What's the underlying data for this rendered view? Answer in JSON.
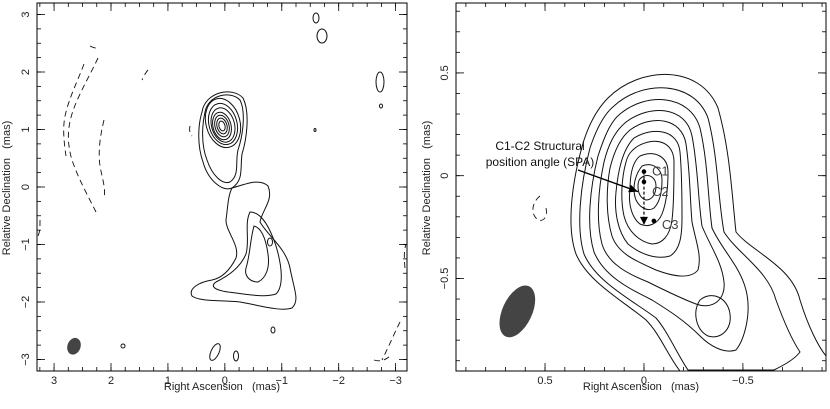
{
  "chart_data": [
    {
      "type": "contour",
      "title": "",
      "xlabel": "Right Ascension   (mas)",
      "ylabel": "Relative Declination   (mas)",
      "xlim": [
        3.3,
        -3.2
      ],
      "ylim": [
        -3.2,
        3.2
      ],
      "x_reversed": true,
      "xticks": [
        3,
        2,
        1,
        0,
        -1,
        -2,
        -3
      ],
      "xtick_labels": [
        "3",
        "2",
        "1",
        "0",
        "−1",
        "−2",
        "−3"
      ],
      "yticks": [
        3,
        2,
        1,
        0,
        -1,
        -2,
        -3
      ],
      "ytick_labels": [
        "3",
        "2",
        "1",
        "0",
        "−1",
        "−2",
        "−3"
      ],
      "core": {
        "x": -0.03,
        "y": 0.98
      },
      "beam": {
        "x": 2.65,
        "y": -2.77,
        "major_mas": 0.3,
        "minor_mas": 0.23,
        "pa_deg": 20
      }
    },
    {
      "type": "contour",
      "title": "",
      "xlabel": "Right Ascension   (mas)",
      "ylabel": "Relative Declination   (mas)",
      "xlim": [
        0.95,
        -0.92
      ],
      "ylim": [
        -0.95,
        0.84
      ],
      "x_reversed": true,
      "xticks": [
        0.5,
        0,
        -0.5
      ],
      "xtick_labels": [
        "0.5",
        "0",
        "−0.5"
      ],
      "yticks": [
        0.5,
        0,
        -0.5
      ],
      "ytick_labels": [
        "0.5",
        "0",
        "−0.5"
      ],
      "components": [
        {
          "name": "C1",
          "x": 0.0,
          "y": 0.02
        },
        {
          "name": "C2",
          "x": 0.0,
          "y": -0.03
        },
        {
          "name": "C3",
          "x": -0.05,
          "y": -0.22
        }
      ],
      "annotation": {
        "line1": "C1-C2 Structural",
        "line2": "position angle (SPA)"
      },
      "beam": {
        "x": 0.64,
        "y": -0.66,
        "major_mas": 0.28,
        "minor_mas": 0.15,
        "pa_deg": 25
      }
    }
  ]
}
